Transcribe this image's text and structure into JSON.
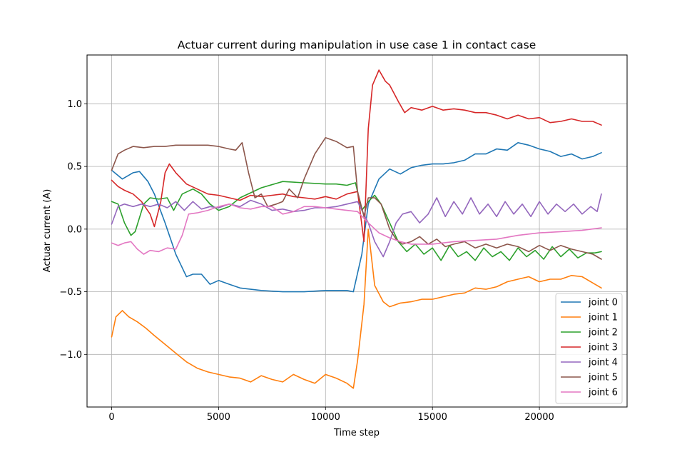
{
  "chart_data": {
    "type": "line",
    "title": "Actuar current during manipulation in use case 1 in contact case",
    "xlabel": "Time step",
    "ylabel": "Actuar current (A)",
    "xlim": [
      -1150,
      24100
    ],
    "ylim": [
      -1.42,
      1.39
    ],
    "xticks": [
      0,
      5000,
      10000,
      15000,
      20000
    ],
    "xtick_labels": [
      "0",
      "5000",
      "10000",
      "15000",
      "20000"
    ],
    "yticks": [
      -1.0,
      -0.5,
      0.0,
      0.5,
      1.0
    ],
    "ytick_labels": [
      "−1.0",
      "−0.5",
      "0.0",
      "0.5",
      "1.0"
    ],
    "grid": true,
    "legend_position": "lower-right",
    "series": [
      {
        "name": "joint 0",
        "color": "#1f77b4",
        "x": [
          0,
          500,
          1000,
          1300,
          1700,
          2000,
          2500,
          3000,
          3500,
          3800,
          4200,
          4600,
          5000,
          5500,
          6000,
          7000,
          8000,
          9000,
          10000,
          11000,
          11300,
          11700,
          12000,
          12500,
          13000,
          13500,
          14000,
          14500,
          15000,
          15500,
          16000,
          16500,
          17000,
          17500,
          18000,
          18500,
          19000,
          19500,
          20000,
          20500,
          21000,
          21500,
          22000,
          22500,
          22900
        ],
        "y": [
          0.47,
          0.4,
          0.45,
          0.46,
          0.38,
          0.28,
          0.05,
          -0.2,
          -0.38,
          -0.36,
          -0.36,
          -0.44,
          -0.41,
          -0.44,
          -0.47,
          -0.49,
          -0.5,
          -0.5,
          -0.49,
          -0.49,
          -0.5,
          -0.2,
          0.2,
          0.4,
          0.48,
          0.44,
          0.49,
          0.51,
          0.52,
          0.52,
          0.53,
          0.55,
          0.6,
          0.6,
          0.64,
          0.63,
          0.69,
          0.67,
          0.64,
          0.62,
          0.58,
          0.6,
          0.56,
          0.58,
          0.61
        ]
      },
      {
        "name": "joint 1",
        "color": "#ff7f0e",
        "x": [
          0,
          200,
          500,
          800,
          1200,
          1600,
          2000,
          2500,
          3000,
          3500,
          4000,
          4500,
          5000,
          5500,
          6000,
          6500,
          7000,
          7500,
          8000,
          8500,
          9000,
          9500,
          10000,
          10500,
          11000,
          11300,
          11500,
          11800,
          12000,
          12300,
          12700,
          13000,
          13500,
          14000,
          14500,
          15000,
          15500,
          16000,
          16500,
          17000,
          17500,
          18000,
          18500,
          19000,
          19500,
          20000,
          20500,
          21000,
          21500,
          22000,
          22500,
          22900
        ],
        "y": [
          -0.86,
          -0.7,
          -0.65,
          -0.7,
          -0.74,
          -0.79,
          -0.85,
          -0.92,
          -0.99,
          -1.06,
          -1.11,
          -1.14,
          -1.16,
          -1.18,
          -1.19,
          -1.22,
          -1.17,
          -1.2,
          -1.22,
          -1.16,
          -1.2,
          -1.23,
          -1.16,
          -1.19,
          -1.23,
          -1.27,
          -1.05,
          -0.6,
          0.0,
          -0.45,
          -0.58,
          -0.62,
          -0.59,
          -0.58,
          -0.56,
          -0.56,
          -0.54,
          -0.52,
          -0.51,
          -0.47,
          -0.48,
          -0.46,
          -0.42,
          -0.4,
          -0.38,
          -0.42,
          -0.4,
          -0.4,
          -0.37,
          -0.38,
          -0.43,
          -0.47
        ]
      },
      {
        "name": "joint 2",
        "color": "#2ca02c",
        "x": [
          0,
          300,
          600,
          900,
          1100,
          1500,
          1800,
          2200,
          2600,
          2900,
          3300,
          3800,
          4200,
          4600,
          5000,
          5500,
          6000,
          7000,
          8000,
          9000,
          10000,
          10500,
          11000,
          11400,
          11700,
          12000,
          12300,
          12600,
          13000,
          13400,
          13800,
          14200,
          14600,
          15000,
          15400,
          15800,
          16200,
          16600,
          17000,
          17400,
          17800,
          18200,
          18600,
          19000,
          19400,
          19800,
          20200,
          20600,
          21000,
          21400,
          21800,
          22200,
          22600,
          22900
        ],
        "y": [
          0.22,
          0.2,
          0.05,
          -0.05,
          -0.02,
          0.2,
          0.25,
          0.24,
          0.25,
          0.15,
          0.28,
          0.32,
          0.28,
          0.2,
          0.15,
          0.18,
          0.25,
          0.33,
          0.38,
          0.37,
          0.36,
          0.36,
          0.35,
          0.37,
          0.15,
          0.22,
          0.27,
          0.2,
          0.05,
          -0.1,
          -0.18,
          -0.12,
          -0.2,
          -0.15,
          -0.25,
          -0.13,
          -0.22,
          -0.18,
          -0.25,
          -0.15,
          -0.22,
          -0.18,
          -0.25,
          -0.15,
          -0.22,
          -0.17,
          -0.24,
          -0.14,
          -0.22,
          -0.16,
          -0.23,
          -0.19,
          -0.19,
          -0.18
        ]
      },
      {
        "name": "joint 3",
        "color": "#d62728",
        "x": [
          0,
          300,
          600,
          1000,
          1400,
          1800,
          2000,
          2300,
          2500,
          2700,
          3000,
          3500,
          4000,
          4500,
          5000,
          5500,
          6000,
          6500,
          7000,
          7500,
          8000,
          8500,
          9000,
          9500,
          10000,
          10500,
          11000,
          11500,
          11800,
          12000,
          12200,
          12500,
          12800,
          13000,
          13400,
          13700,
          14000,
          14500,
          15000,
          15500,
          16000,
          16500,
          17000,
          17500,
          18000,
          18500,
          19000,
          19500,
          20000,
          20500,
          21000,
          21500,
          22000,
          22500,
          22900
        ],
        "y": [
          0.39,
          0.34,
          0.31,
          0.28,
          0.22,
          0.12,
          0.02,
          0.22,
          0.45,
          0.52,
          0.45,
          0.36,
          0.32,
          0.28,
          0.27,
          0.25,
          0.23,
          0.27,
          0.26,
          0.27,
          0.28,
          0.26,
          0.25,
          0.24,
          0.26,
          0.24,
          0.28,
          0.3,
          -0.1,
          0.8,
          1.15,
          1.27,
          1.18,
          1.15,
          1.02,
          0.93,
          0.97,
          0.95,
          0.98,
          0.95,
          0.96,
          0.95,
          0.93,
          0.93,
          0.91,
          0.88,
          0.91,
          0.88,
          0.89,
          0.85,
          0.86,
          0.88,
          0.86,
          0.86,
          0.83
        ]
      },
      {
        "name": "joint 4",
        "color": "#9467bd",
        "x": [
          0,
          300,
          600,
          1000,
          1400,
          1800,
          2200,
          2600,
          3000,
          3400,
          3800,
          4200,
          4600,
          5000,
          5500,
          6000,
          6500,
          7000,
          7500,
          8000,
          8500,
          9000,
          9500,
          10000,
          10500,
          11000,
          11500,
          12000,
          12300,
          12700,
          13000,
          13300,
          13600,
          14000,
          14400,
          14800,
          15200,
          15600,
          16000,
          16400,
          16800,
          17200,
          17600,
          18000,
          18400,
          18800,
          19200,
          19600,
          20000,
          20400,
          20800,
          21200,
          21600,
          22000,
          22400,
          22700,
          22900
        ],
        "y": [
          0.04,
          0.18,
          0.2,
          0.18,
          0.2,
          0.18,
          0.2,
          0.17,
          0.22,
          0.15,
          0.22,
          0.16,
          0.18,
          0.17,
          0.2,
          0.18,
          0.23,
          0.2,
          0.15,
          0.16,
          0.14,
          0.15,
          0.17,
          0.17,
          0.18,
          0.2,
          0.22,
          0.05,
          -0.1,
          -0.22,
          -0.1,
          0.05,
          0.12,
          0.14,
          0.05,
          0.12,
          0.25,
          0.1,
          0.22,
          0.12,
          0.25,
          0.12,
          0.2,
          0.1,
          0.22,
          0.12,
          0.2,
          0.1,
          0.22,
          0.12,
          0.2,
          0.14,
          0.2,
          0.12,
          0.18,
          0.14,
          0.28
        ]
      },
      {
        "name": "joint 5",
        "color": "#8c564b",
        "x": [
          0,
          300,
          600,
          1000,
          1500,
          2000,
          2500,
          3000,
          3500,
          4000,
          4500,
          5000,
          5500,
          5800,
          6100,
          6400,
          6700,
          7000,
          7300,
          7700,
          8000,
          8300,
          8700,
          9000,
          9500,
          10000,
          10500,
          11000,
          11300,
          11500,
          11800,
          12000,
          12300,
          12600,
          13000,
          13300,
          13600,
          14000,
          14400,
          14800,
          15200,
          15600,
          16000,
          16500,
          17000,
          17500,
          18000,
          18500,
          19000,
          19500,
          20000,
          20500,
          21000,
          21500,
          22000,
          22500,
          22900
        ],
        "y": [
          0.47,
          0.6,
          0.63,
          0.66,
          0.65,
          0.66,
          0.66,
          0.67,
          0.67,
          0.67,
          0.67,
          0.66,
          0.64,
          0.63,
          0.69,
          0.45,
          0.25,
          0.28,
          0.18,
          0.2,
          0.22,
          0.32,
          0.25,
          0.4,
          0.6,
          0.73,
          0.7,
          0.65,
          0.66,
          0.3,
          0.1,
          0.25,
          0.25,
          0.2,
          0.0,
          -0.08,
          -0.12,
          -0.1,
          -0.06,
          -0.12,
          -0.08,
          -0.14,
          -0.12,
          -0.1,
          -0.15,
          -0.12,
          -0.15,
          -0.12,
          -0.14,
          -0.18,
          -0.13,
          -0.17,
          -0.13,
          -0.16,
          -0.18,
          -0.2,
          -0.24
        ]
      },
      {
        "name": "joint 6",
        "color": "#e377c2",
        "x": [
          0,
          300,
          600,
          900,
          1200,
          1500,
          1800,
          2200,
          2600,
          3000,
          3300,
          3600,
          4000,
          4500,
          5000,
          5500,
          6000,
          6500,
          7000,
          7500,
          8000,
          8500,
          9000,
          9500,
          10000,
          10500,
          11000,
          11500,
          12000,
          12500,
          13000,
          13500,
          14000,
          15000,
          16000,
          17000,
          18000,
          19000,
          20000,
          21000,
          22000,
          22900
        ],
        "y": [
          -0.11,
          -0.13,
          -0.11,
          -0.1,
          -0.16,
          -0.2,
          -0.17,
          -0.18,
          -0.15,
          -0.16,
          -0.05,
          0.12,
          0.13,
          0.15,
          0.18,
          0.2,
          0.17,
          0.16,
          0.18,
          0.18,
          0.12,
          0.14,
          0.18,
          0.18,
          0.17,
          0.16,
          0.15,
          0.14,
          0.05,
          -0.03,
          -0.07,
          -0.1,
          -0.12,
          -0.12,
          -0.1,
          -0.09,
          -0.08,
          -0.05,
          -0.03,
          -0.02,
          -0.01,
          0.01
        ]
      }
    ]
  }
}
